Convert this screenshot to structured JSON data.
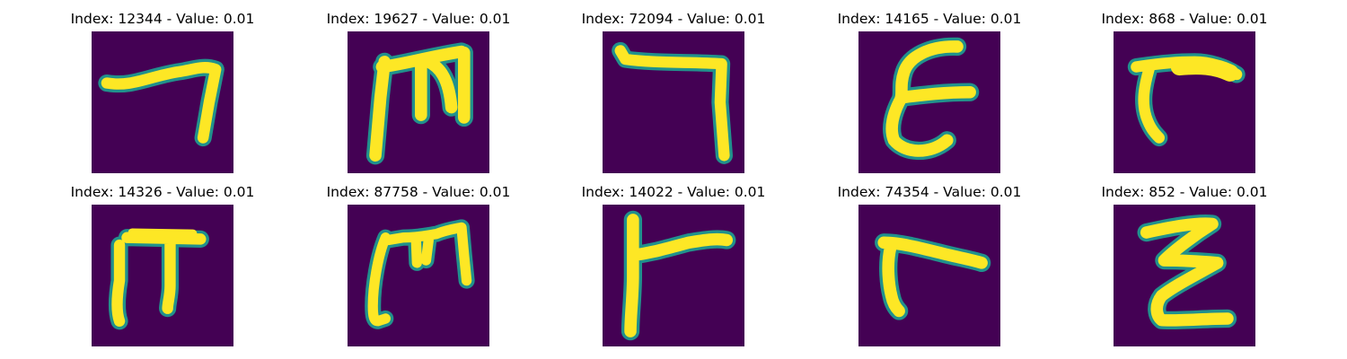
{
  "figure": {
    "background": "#440154",
    "stroke": "#fde725",
    "edge": "#21918c",
    "panels": [
      {
        "title": "Index: 12344 - Value: 0.01",
        "glyph": "seven-shape"
      },
      {
        "title": "Index: 19627 - Value: 0.01",
        "glyph": "m-shape"
      },
      {
        "title": "Index: 72094 - Value: 0.01",
        "glyph": "seven-shape"
      },
      {
        "title": "Index: 14165 - Value: 0.01",
        "glyph": "epsilon-shape"
      },
      {
        "title": "Index: 868 - Value: 0.01",
        "glyph": "hook-shape"
      },
      {
        "title": "Index: 14326 - Value: 0.01",
        "glyph": "pi-shape"
      },
      {
        "title": "Index: 87758 - Value: 0.01",
        "glyph": "m-shape"
      },
      {
        "title": "Index: 14022 - Value: 0.01",
        "glyph": "gamma-shape"
      },
      {
        "title": "Index: 74354 - Value: 0.01",
        "glyph": "hook-shape"
      },
      {
        "title": "Index: 852 - Value: 0.01",
        "glyph": "z-shape"
      }
    ]
  }
}
